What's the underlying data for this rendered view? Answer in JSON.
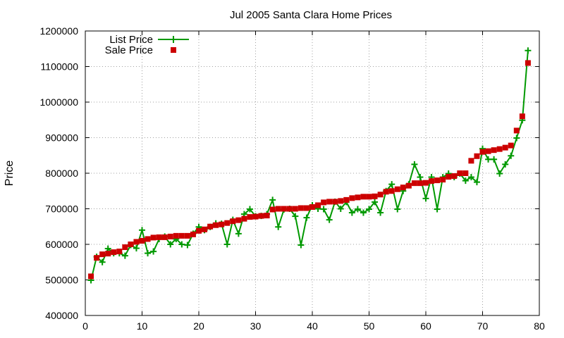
{
  "chart_data": {
    "type": "line",
    "title": "Jul 2005 Santa Clara Home Prices",
    "xlabel": "",
    "ylabel": "Price",
    "xlim": [
      0,
      80
    ],
    "ylim": [
      400000,
      1200000
    ],
    "xticks": [
      0,
      10,
      20,
      30,
      40,
      50,
      60,
      70,
      80
    ],
    "yticks": [
      400000,
      500000,
      600000,
      700000,
      800000,
      900000,
      1000000,
      1100000,
      1200000
    ],
    "grid": true,
    "legend_position": "top-left",
    "series": [
      {
        "name": "List Price",
        "style": "line+plus",
        "color": "#009900",
        "x": [
          1,
          2,
          3,
          4,
          5,
          6,
          7,
          8,
          9,
          10,
          11,
          12,
          13,
          14,
          15,
          16,
          17,
          18,
          19,
          20,
          21,
          22,
          23,
          24,
          25,
          26,
          27,
          28,
          29,
          30,
          31,
          32,
          33,
          34,
          35,
          36,
          37,
          38,
          39,
          40,
          41,
          42,
          43,
          44,
          45,
          46,
          47,
          48,
          49,
          50,
          51,
          52,
          53,
          54,
          55,
          56,
          57,
          58,
          59,
          60,
          61,
          62,
          63,
          64,
          65,
          66,
          67,
          68,
          69,
          70,
          71,
          72,
          73,
          74,
          75,
          76,
          77,
          78
        ],
        "values": [
          499000,
          565000,
          550000,
          588000,
          575000,
          575000,
          568000,
          598000,
          589000,
          640000,
          575000,
          580000,
          615000,
          622000,
          600000,
          615000,
          600000,
          598000,
          630000,
          649000,
          640000,
          649000,
          659000,
          658000,
          600000,
          669000,
          630000,
          685000,
          699000,
          679000,
          680000,
          685000,
          725000,
          649000,
          698000,
          700000,
          679000,
          598000,
          675000,
          710000,
          700000,
          699000,
          669000,
          720000,
          700000,
          719000,
          689000,
          699000,
          689000,
          699000,
          719000,
          689000,
          750000,
          769000,
          699000,
          750000,
          769000,
          825000,
          789000,
          729000,
          789000,
          699000,
          789000,
          799000,
          789000,
          799000,
          779000,
          789000,
          775000,
          869000,
          839000,
          839000,
          799000,
          825000,
          849000,
          899000,
          949000,
          1145000
        ]
      },
      {
        "name": "Sale Price",
        "style": "square",
        "color": "#cc0000",
        "x": [
          1,
          2,
          3,
          4,
          5,
          6,
          7,
          8,
          9,
          10,
          11,
          12,
          13,
          14,
          15,
          16,
          17,
          18,
          19,
          20,
          21,
          22,
          23,
          24,
          25,
          26,
          27,
          28,
          29,
          30,
          31,
          32,
          33,
          34,
          35,
          36,
          37,
          38,
          39,
          40,
          41,
          42,
          43,
          44,
          45,
          46,
          47,
          48,
          49,
          50,
          51,
          52,
          53,
          54,
          55,
          56,
          57,
          58,
          59,
          60,
          61,
          62,
          63,
          64,
          65,
          66,
          67,
          68,
          69,
          70,
          71,
          72,
          73,
          74,
          75,
          76,
          77,
          78
        ],
        "values": [
          510000,
          562000,
          572000,
          574000,
          578000,
          580000,
          592000,
          600000,
          607000,
          610000,
          615000,
          619000,
          620000,
          620000,
          622000,
          624000,
          624000,
          624000,
          628000,
          638000,
          642000,
          650000,
          654000,
          656000,
          660000,
          665000,
          668000,
          672000,
          677000,
          678000,
          680000,
          681000,
          698000,
          700000,
          700000,
          700000,
          700000,
          702000,
          702000,
          705000,
          710000,
          718000,
          720000,
          720000,
          722000,
          725000,
          730000,
          732000,
          734000,
          734000,
          735000,
          740000,
          748000,
          750000,
          755000,
          760000,
          765000,
          772000,
          772000,
          773000,
          778000,
          780000,
          782000,
          790000,
          792000,
          800000,
          800000,
          835000,
          848000,
          860000,
          862000,
          865000,
          868000,
          872000,
          878000,
          920000,
          960000,
          1110000
        ]
      }
    ]
  }
}
